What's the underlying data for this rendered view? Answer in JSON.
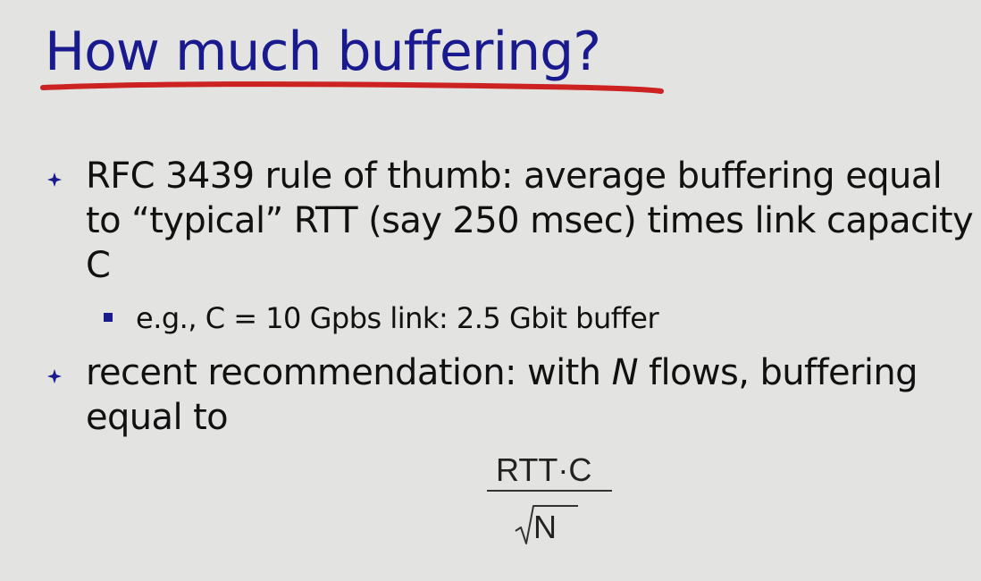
{
  "slide": {
    "title": "How much buffering?",
    "title_color": "#1a1a8f",
    "underline_color": "#cc2222",
    "bullets": [
      {
        "text": "RFC 3439 rule of thumb: average buffering equal to “typical” RTT (say 250 msec) times link capacity C",
        "sub_items": [
          {
            "text": "e.g., C = 10 Gpbs link: 2.5 Gbit buffer"
          }
        ]
      },
      {
        "text_before": "recent recommendation: with ",
        "text_italic": "N",
        "text_after": " flows, buffering equal to"
      }
    ],
    "formula": {
      "numerator": "RTT·C",
      "denominator": "N"
    }
  }
}
